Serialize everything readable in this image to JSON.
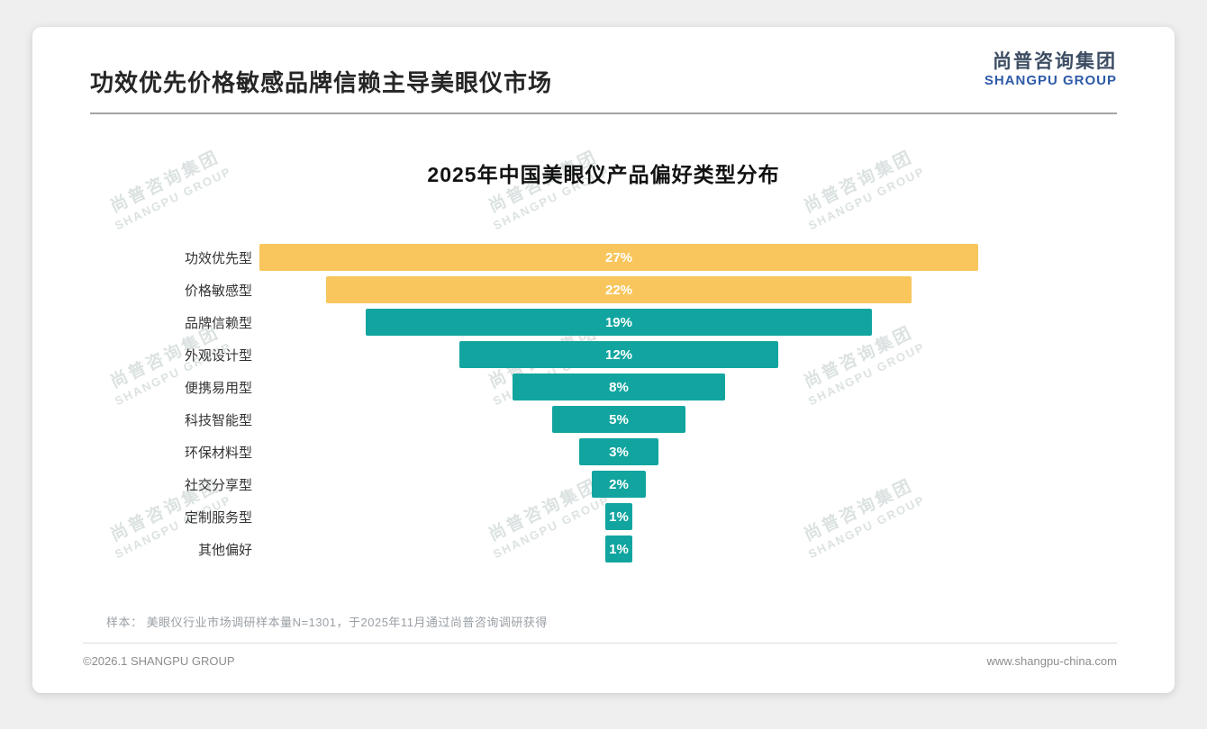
{
  "page": {
    "title": "功效优先价格敏感品牌信赖主导美眼仪市场",
    "sample_note": "样本： 美眼仪行业市场调研样本量N=1301，于2025年11月通过尚普咨询调研获得",
    "footer_left": "©2026.1 SHANGPU GROUP",
    "footer_right": "www.shangpu-china.com"
  },
  "logo": {
    "cn": "尚普咨询集团",
    "en": "SHANGPU GROUP"
  },
  "watermark": {
    "cn": "尚普咨询集团",
    "en": "SHANGPU GROUP"
  },
  "chart_data": {
    "type": "bar",
    "variant": "centered-funnel-horizontal",
    "title": "2025年中国美眼仪产品偏好类型分布",
    "categories": [
      "功效优先型",
      "价格敏感型",
      "品牌信赖型",
      "外观设计型",
      "便携易用型",
      "科技智能型",
      "环保材料型",
      "社交分享型",
      "定制服务型",
      "其他偏好"
    ],
    "values": [
      27,
      22,
      19,
      12,
      8,
      5,
      3,
      2,
      1,
      1
    ],
    "labels": [
      "27%",
      "22%",
      "19%",
      "12%",
      "8%",
      "5%",
      "3%",
      "2%",
      "1%",
      "1%"
    ],
    "unit": "%",
    "xmax": 27,
    "bar_colors": [
      "#f8c65d",
      "#f8c65d",
      "#12a5a0",
      "#12a5a0",
      "#12a5a0",
      "#12a5a0",
      "#12a5a0",
      "#12a5a0",
      "#12a5a0",
      "#12a5a0"
    ],
    "colors": {
      "yellow": "#f8c65d",
      "teal": "#12a5a0",
      "value_text": "#ffffff"
    },
    "legend": "none",
    "grid": "off"
  }
}
